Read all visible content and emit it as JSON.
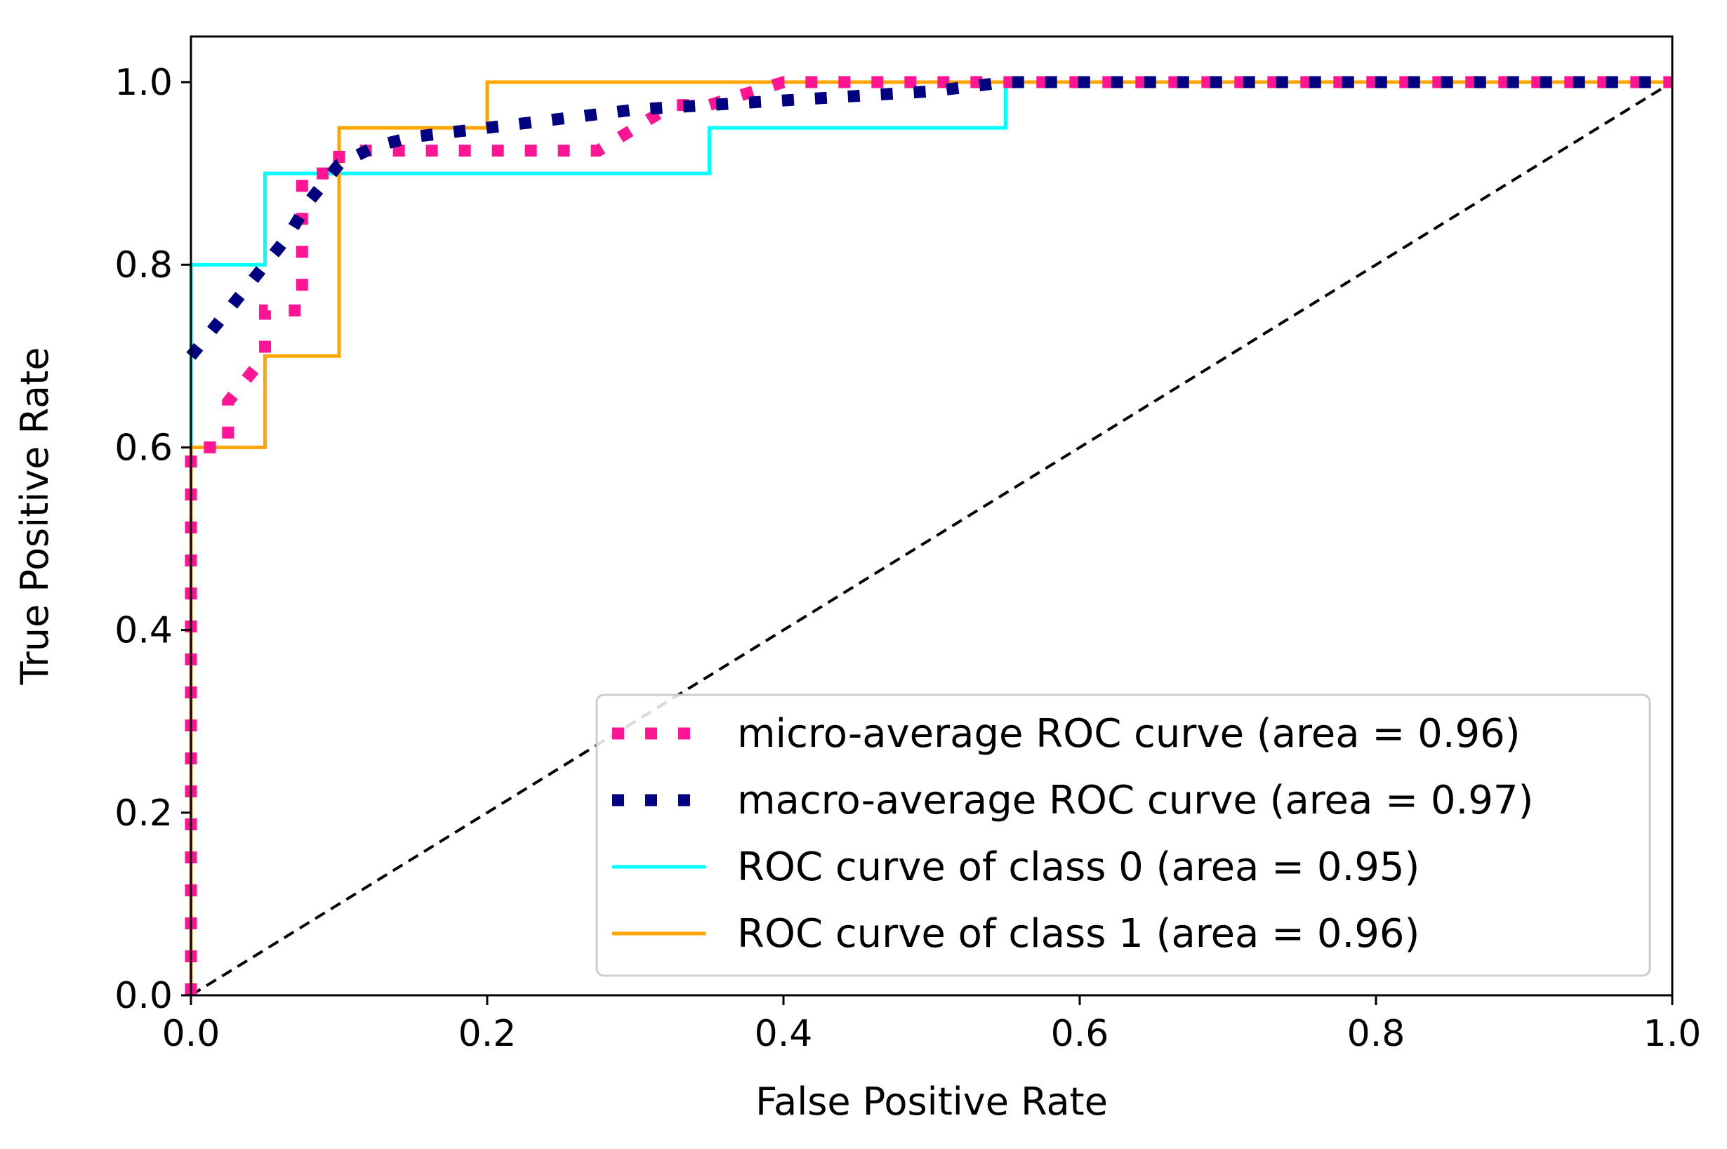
{
  "chart_data": {
    "type": "line",
    "title": "",
    "xlabel": "False Positive Rate",
    "ylabel": "True Positive Rate",
    "xlim": [
      0.0,
      1.0
    ],
    "ylim": [
      0.0,
      1.05
    ],
    "xticks": [
      "0.0",
      "0.2",
      "0.4",
      "0.6",
      "0.8",
      "1.0"
    ],
    "yticks": [
      "0.0",
      "0.2",
      "0.4",
      "0.6",
      "0.8",
      "1.0"
    ],
    "grid": false,
    "legend_position": "lower-right",
    "series": [
      {
        "name": "micro-average ROC curve (area = 0.96)",
        "color": "#ff1493",
        "style": "dotted-thick",
        "x": [
          0.0,
          0.0,
          0.025,
          0.025,
          0.05,
          0.05,
          0.075,
          0.075,
          0.1,
          0.1,
          0.125,
          0.15,
          0.175,
          0.2,
          0.225,
          0.25,
          0.275,
          0.3,
          0.325,
          0.35,
          0.4,
          0.45,
          0.5,
          0.55,
          0.6,
          1.0
        ],
        "y": [
          0.0,
          0.6,
          0.6,
          0.65,
          0.7,
          0.75,
          0.75,
          0.9,
          0.9,
          0.925,
          0.925,
          0.925,
          0.925,
          0.925,
          0.925,
          0.925,
          0.925,
          0.95,
          0.975,
          0.975,
          1.0,
          1.0,
          1.0,
          1.0,
          1.0,
          1.0
        ]
      },
      {
        "name": "macro-average ROC curve (area = 0.97)",
        "color": "#000080",
        "style": "dotted-thick",
        "x": [
          0.0,
          0.025,
          0.05,
          0.065,
          0.08,
          0.1,
          0.125,
          0.15,
          0.2,
          0.25,
          0.3,
          0.35,
          0.4,
          0.45,
          0.5,
          0.55,
          0.6,
          1.0
        ],
        "y": [
          0.7,
          0.75,
          0.8,
          0.83,
          0.87,
          0.91,
          0.93,
          0.94,
          0.95,
          0.96,
          0.97,
          0.975,
          0.98,
          0.985,
          0.99,
          1.0,
          1.0,
          1.0
        ]
      },
      {
        "name": "ROC curve of class 0 (area = 0.95)",
        "color": "#00ffff",
        "style": "solid",
        "x": [
          0.0,
          0.0,
          0.05,
          0.05,
          0.35,
          0.35,
          0.55,
          0.55,
          1.0
        ],
        "y": [
          0.0,
          0.8,
          0.8,
          0.9,
          0.9,
          0.95,
          0.95,
          1.0,
          1.0
        ]
      },
      {
        "name": "ROC curve of class 1 (area = 0.96)",
        "color": "#ffa500",
        "style": "solid",
        "x": [
          0.0,
          0.0,
          0.05,
          0.05,
          0.1,
          0.1,
          0.2,
          0.2,
          1.0
        ],
        "y": [
          0.0,
          0.6,
          0.6,
          0.7,
          0.7,
          0.95,
          0.95,
          1.0,
          1.0
        ]
      }
    ],
    "reference_line": {
      "x": [
        0.0,
        1.0
      ],
      "y": [
        0.0,
        1.0
      ],
      "color": "#000000",
      "style": "dashed"
    }
  }
}
